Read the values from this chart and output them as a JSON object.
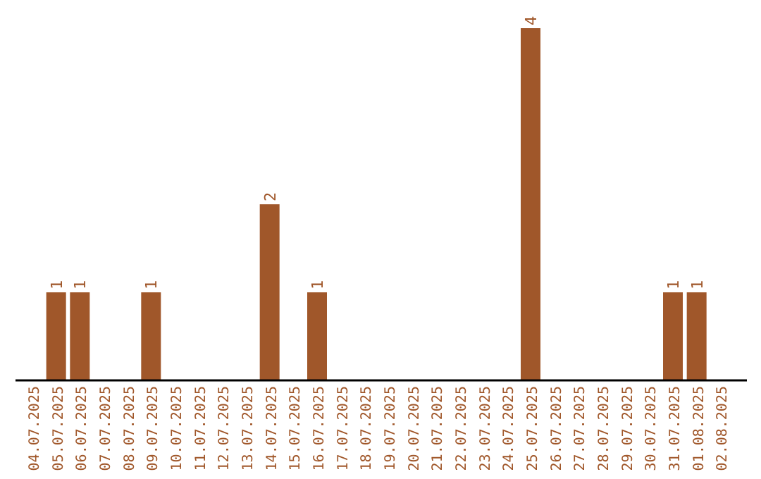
{
  "chart_data": {
    "type": "bar",
    "categories": [
      "04.07.2025",
      "05.07.2025",
      "06.07.2025",
      "07.07.2025",
      "08.07.2025",
      "09.07.2025",
      "10.07.2025",
      "11.07.2025",
      "12.07.2025",
      "13.07.2025",
      "14.07.2025",
      "15.07.2025",
      "16.07.2025",
      "17.07.2025",
      "18.07.2025",
      "19.07.2025",
      "20.07.2025",
      "21.07.2025",
      "22.07.2025",
      "23.07.2025",
      "24.07.2025",
      "25.07.2025",
      "26.07.2025",
      "27.07.2025",
      "28.07.2025",
      "29.07.2025",
      "30.07.2025",
      "31.07.2025",
      "01.08.2025",
      "02.08.2025"
    ],
    "values": [
      0,
      1,
      1,
      0,
      0,
      1,
      0,
      0,
      0,
      0,
      2,
      0,
      1,
      0,
      0,
      0,
      0,
      0,
      0,
      0,
      0,
      4,
      0,
      0,
      0,
      0,
      0,
      1,
      1,
      0
    ],
    "value_labels": [
      null,
      "1",
      "1",
      null,
      null,
      "1",
      null,
      null,
      null,
      null,
      "2",
      null,
      "1",
      null,
      null,
      null,
      null,
      null,
      null,
      null,
      null,
      "4",
      null,
      null,
      null,
      null,
      null,
      "1",
      "1",
      null
    ],
    "color": "#a0572a",
    "tick_labels": "x"
  }
}
